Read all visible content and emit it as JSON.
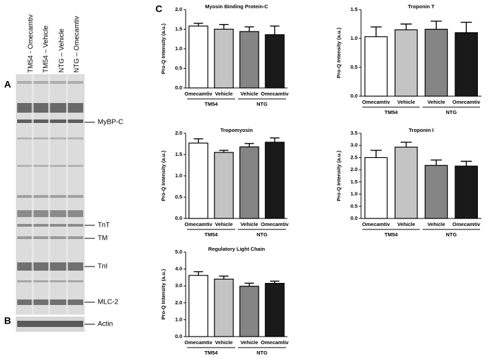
{
  "panels": [
    "A",
    "B",
    "C"
  ],
  "gel": {
    "lanes": [
      "TM54 - Omecamtiv",
      "TM54 – Vehicle",
      "NTG – Vehicle",
      "NTG – Omecamtiv"
    ],
    "bands": [
      "MyBP-C",
      "TnT",
      "TM",
      "TnI",
      "MLC-2",
      "Actin"
    ]
  },
  "chart_data": [
    {
      "type": "bar",
      "title": "Myosin Binding Protein-C",
      "ylabel": "Pro-Q Intensity (a.u.)",
      "categories": [
        "Omecamtiv",
        "Vehicle",
        "Vehicle",
        "Omecamtiv"
      ],
      "groups": [
        "TM54",
        "NTG"
      ],
      "values": [
        1.58,
        1.5,
        1.44,
        1.36
      ],
      "errors": [
        0.07,
        0.12,
        0.12,
        0.22
      ],
      "colors": [
        "#ffffff",
        "#c4c4c4",
        "#858585",
        "#1a1a1a"
      ],
      "ylim": [
        0,
        2
      ],
      "yticks": [
        {
          "value": 0,
          "label": "0.0"
        },
        0.5,
        {
          "value": 1,
          "label": "1.0"
        },
        1.5,
        {
          "value": 2,
          "label": "2.0"
        }
      ]
    },
    {
      "type": "bar",
      "title": "Troponin  T",
      "ylabel": "Pro-Q Intensity (a.u.)",
      "categories": [
        "Omecamtiv",
        "Vehicle",
        "Vehicle",
        "Omecamtiv"
      ],
      "groups": [
        "TM54",
        "NTG"
      ],
      "values": [
        1.03,
        1.15,
        1.16,
        1.1
      ],
      "errors": [
        0.17,
        0.1,
        0.14,
        0.18
      ],
      "colors": [
        "#ffffff",
        "#c4c4c4",
        "#858585",
        "#1a1a1a"
      ],
      "ylim": [
        0,
        1.5
      ],
      "yticks": [
        {
          "value": 0,
          "label": "0.0"
        },
        0.5,
        {
          "value": 1,
          "label": "1.0"
        },
        1.5
      ]
    },
    {
      "type": "bar",
      "title": "Tropomyosin",
      "ylabel": "Pro-Q Intensity (a.u.)",
      "categories": [
        "Omecamtiv",
        "Vehicle",
        "Vehicle",
        "Omecamtiv"
      ],
      "groups": [
        "TM54",
        "NTG"
      ],
      "values": [
        1.77,
        1.55,
        1.68,
        1.79
      ],
      "errors": [
        0.1,
        0.05,
        0.08,
        0.1
      ],
      "colors": [
        "#ffffff",
        "#c4c4c4",
        "#858585",
        "#1a1a1a"
      ],
      "ylim": [
        0,
        2
      ],
      "yticks": [
        {
          "value": 0,
          "label": "0.0"
        },
        0.5,
        {
          "value": 1,
          "label": "1.0"
        },
        1.5,
        {
          "value": 2,
          "label": "2.0"
        }
      ]
    },
    {
      "type": "bar",
      "title": "Troponin I",
      "ylabel": "Pro-Q Intensity (a.u.)",
      "categories": [
        "Omecamtiv",
        "Vehicle",
        "Vehicle",
        "Omecamtiv"
      ],
      "groups": [
        "TM54",
        "NTG"
      ],
      "values": [
        2.5,
        2.93,
        2.18,
        2.15
      ],
      "errors": [
        0.3,
        0.2,
        0.22,
        0.2
      ],
      "colors": [
        "#ffffff",
        "#c4c4c4",
        "#858585",
        "#1a1a1a"
      ],
      "ylim": [
        0,
        3.5
      ],
      "yticks": [
        {
          "value": 0,
          "label": "0.0"
        },
        0.5,
        {
          "value": 1,
          "label": "1.0"
        },
        1.5,
        {
          "value": 2,
          "label": "2.0"
        },
        2.5,
        {
          "value": 3,
          "label": "3.0"
        },
        3.5
      ]
    },
    {
      "type": "bar",
      "title": "Regulatory Light Chain",
      "ylabel": "Pro-Q Intensity (a.u.)",
      "categories": [
        "Omecamtiv",
        "Vehicle",
        "Vehicle",
        "Omecamtiv"
      ],
      "groups": [
        "TM54",
        "NTG"
      ],
      "values": [
        3.62,
        3.4,
        2.98,
        3.15
      ],
      "errors": [
        0.22,
        0.18,
        0.18,
        0.13
      ],
      "colors": [
        "#ffffff",
        "#c4c4c4",
        "#858585",
        "#1a1a1a"
      ],
      "ylim": [
        0,
        5
      ],
      "yticks": [
        {
          "value": 0,
          "label": "0.0"
        },
        {
          "value": 1,
          "label": "1.0"
        },
        {
          "value": 2,
          "label": "2.0"
        },
        {
          "value": 3,
          "label": "3.0"
        },
        {
          "value": 4,
          "label": "4.0"
        },
        {
          "value": 5,
          "label": "5.0"
        }
      ]
    }
  ]
}
